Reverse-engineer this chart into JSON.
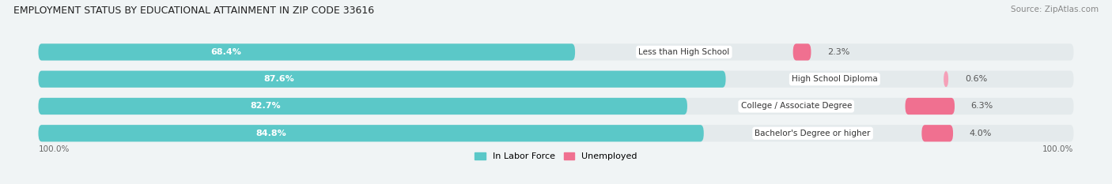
{
  "title": "EMPLOYMENT STATUS BY EDUCATIONAL ATTAINMENT IN ZIP CODE 33616",
  "source": "Source: ZipAtlas.com",
  "categories": [
    "Less than High School",
    "High School Diploma",
    "College / Associate Degree",
    "Bachelor's Degree or higher"
  ],
  "labor_force": [
    68.4,
    87.6,
    82.7,
    84.8
  ],
  "unemployed": [
    2.3,
    0.6,
    6.3,
    4.0
  ],
  "teal_color": "#5BC8C8",
  "pink_color": "#F07090",
  "light_pink_color": "#F5A0B8",
  "bg_color": "#f0f4f5",
  "bar_bg_color": "#e4eaec",
  "x_axis_left_label": "100.0%",
  "x_axis_right_label": "100.0%",
  "legend_labor": "In Labor Force",
  "legend_unemployed": "Unemployed",
  "total_width": 100.0
}
